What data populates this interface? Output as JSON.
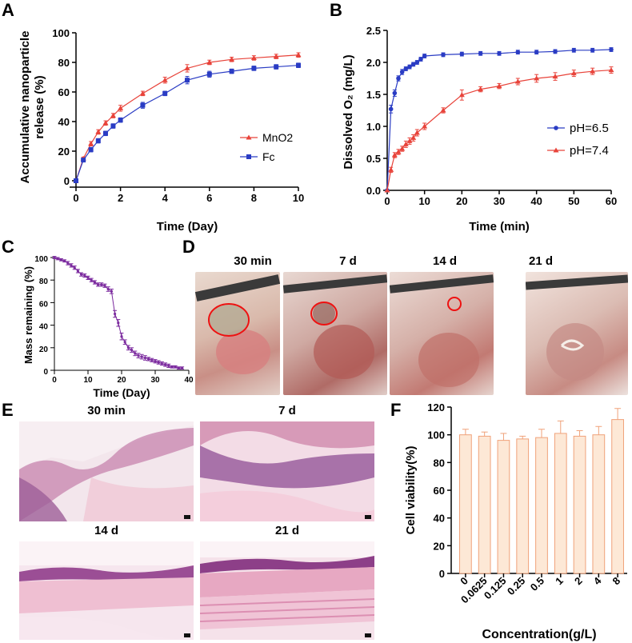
{
  "panels": {
    "A": "A",
    "B": "B",
    "C": "C",
    "D": "D",
    "E": "E",
    "F": "F"
  },
  "colors": {
    "red": "#e8433a",
    "blue": "#2a3cc4",
    "purple": "#7b2a9e",
    "bar_fill": "#fde8d6",
    "bar_edge": "#f0a27a"
  },
  "chart_data": [
    {
      "id": "A",
      "type": "line",
      "ylabel": "Accumulative nanoparticle release (%)",
      "ylabel_lines": [
        "Accumulative nanoparticle",
        "release (%)"
      ],
      "xlabel": "Time (Day)",
      "xlim": [
        0,
        10
      ],
      "ylim": [
        0,
        100
      ],
      "xticks": [
        "0",
        "2",
        "4",
        "6",
        "8",
        "10"
      ],
      "yticks": [
        "0",
        "20",
        "40",
        "60",
        "80",
        "100"
      ],
      "legend": "center-right",
      "series": [
        {
          "name": "MnO2",
          "color": "#e8433a",
          "marker": "triangle",
          "x": [
            0,
            0.33,
            0.67,
            1,
            1.33,
            1.67,
            2,
            3,
            4,
            5,
            6,
            7,
            8,
            9,
            10
          ],
          "y": [
            0,
            15,
            25,
            33,
            39,
            44,
            49,
            59,
            68,
            76,
            80,
            82,
            83,
            84,
            85
          ],
          "err": [
            0,
            1,
            1.5,
            1.5,
            1.5,
            1.5,
            2,
            1.5,
            2,
            2.5,
            1.5,
            1.5,
            1.5,
            1.5,
            1.5
          ]
        },
        {
          "name": "Fc",
          "color": "#2a3cc4",
          "marker": "square",
          "x": [
            0,
            0.33,
            0.67,
            1,
            1.33,
            1.67,
            2,
            3,
            4,
            5,
            6,
            7,
            8,
            9,
            10
          ],
          "y": [
            0,
            14,
            21,
            27,
            32,
            37,
            41,
            51,
            59,
            68,
            72,
            74,
            76,
            77,
            78
          ],
          "err": [
            0,
            1,
            1.5,
            1.5,
            1.5,
            1.5,
            1.5,
            2,
            1.5,
            2.5,
            2,
            1.5,
            1.5,
            1.5,
            1.5
          ]
        }
      ]
    },
    {
      "id": "B",
      "type": "line",
      "ylabel": "Dissolved O₂ (mg/L)",
      "xlabel": "Time (min)",
      "xlim": [
        0,
        60
      ],
      "ylim": [
        0,
        2.5
      ],
      "xticks": [
        "0",
        "10",
        "20",
        "30",
        "40",
        "50",
        "60"
      ],
      "yticks": [
        "0.0",
        "0.5",
        "1.0",
        "1.5",
        "2.0",
        "2.5"
      ],
      "legend": "bottom-right",
      "series": [
        {
          "name": "pH=6.5",
          "color": "#2a3cc4",
          "marker": "dot",
          "x": [
            0,
            1,
            2,
            3,
            4,
            5,
            6,
            7,
            8,
            9,
            10,
            15,
            20,
            25,
            30,
            35,
            40,
            45,
            50,
            55,
            60
          ],
          "y": [
            0,
            1.27,
            1.52,
            1.75,
            1.85,
            1.9,
            1.93,
            1.97,
            2.0,
            2.05,
            2.1,
            2.12,
            2.13,
            2.14,
            2.14,
            2.16,
            2.16,
            2.17,
            2.19,
            2.19,
            2.2
          ],
          "err": [
            0,
            0.06,
            0.05,
            0.04,
            0.04,
            0.03,
            0.03,
            0.03,
            0.03,
            0.03,
            0.03,
            0.03,
            0.03,
            0.03,
            0.03,
            0.03,
            0.03,
            0.03,
            0.03,
            0.03,
            0.03
          ]
        },
        {
          "name": "pH=7.4",
          "color": "#e8433a",
          "marker": "triangle",
          "x": [
            0,
            1,
            2,
            3,
            4,
            5,
            6,
            7,
            8,
            10,
            15,
            20,
            25,
            30,
            35,
            40,
            45,
            50,
            55,
            60
          ],
          "y": [
            0,
            0.32,
            0.55,
            0.6,
            0.65,
            0.72,
            0.77,
            0.82,
            0.9,
            1.0,
            1.25,
            1.49,
            1.58,
            1.63,
            1.7,
            1.75,
            1.78,
            1.83,
            1.86,
            1.88
          ],
          "err": [
            0,
            0.04,
            0.04,
            0.04,
            0.04,
            0.05,
            0.05,
            0.05,
            0.05,
            0.05,
            0.04,
            0.08,
            0.04,
            0.04,
            0.05,
            0.06,
            0.06,
            0.05,
            0.05,
            0.05
          ]
        }
      ]
    },
    {
      "id": "C",
      "type": "line",
      "ylabel": "Mass remaining (%)",
      "xlabel": "Time (Day)",
      "xlim": [
        0,
        40
      ],
      "ylim": [
        0,
        100
      ],
      "xticks": [
        "0",
        "10",
        "20",
        "30",
        "40"
      ],
      "yticks": [
        "0",
        "20",
        "40",
        "60",
        "80",
        "100"
      ],
      "series": [
        {
          "name": "mass",
          "color": "#7b2a9e",
          "marker": "small",
          "x": [
            0,
            1,
            2,
            3,
            4,
            5,
            6,
            7,
            8,
            9,
            10,
            11,
            12,
            13,
            14,
            15,
            16,
            17,
            18,
            19,
            20,
            21,
            22,
            23,
            24,
            25,
            26,
            27,
            28,
            29,
            30,
            31,
            32,
            33,
            34,
            35,
            36,
            37,
            38
          ],
          "y": [
            100,
            99,
            98,
            97,
            95,
            93,
            91,
            88,
            85,
            84,
            82,
            80,
            78,
            76,
            76,
            75,
            72,
            70,
            50,
            42,
            30,
            25,
            20,
            18,
            15,
            13,
            12,
            11,
            10,
            9,
            8,
            7,
            6,
            5,
            4,
            3,
            3,
            2,
            2
          ],
          "err": [
            1,
            1,
            1,
            1,
            1.5,
            1.5,
            1.5,
            1.5,
            1.5,
            1.5,
            1.5,
            1.5,
            1.5,
            1.5,
            1.5,
            1.5,
            2,
            2,
            3,
            3,
            3,
            2,
            2,
            2,
            2,
            2,
            2,
            2,
            1.5,
            1.5,
            1.5,
            1.5,
            1.5,
            1.5,
            1.5,
            1,
            1,
            1,
            1
          ]
        }
      ]
    },
    {
      "id": "F",
      "type": "bar",
      "ylabel": "Cell viability(%)",
      "xlabel": "Concentration(g/L)",
      "ylim": [
        0,
        120
      ],
      "yticks": [
        "0",
        "20",
        "40",
        "60",
        "80",
        "100",
        "120"
      ],
      "categories": [
        "0",
        "0.0625",
        "0.125",
        "0.25",
        "0.5",
        "1",
        "2",
        "4",
        "8"
      ],
      "values": [
        100,
        99,
        96,
        97,
        98,
        101,
        99,
        100,
        111
      ],
      "err": [
        4,
        3,
        5,
        2,
        6,
        9,
        4,
        6,
        8
      ]
    }
  ],
  "panel_D": {
    "labels": [
      "30 min",
      "7 d",
      "14 d",
      "21 d"
    ]
  },
  "panel_E": {
    "labels": [
      "30 min",
      "7 d",
      "14 d",
      "21 d"
    ]
  }
}
